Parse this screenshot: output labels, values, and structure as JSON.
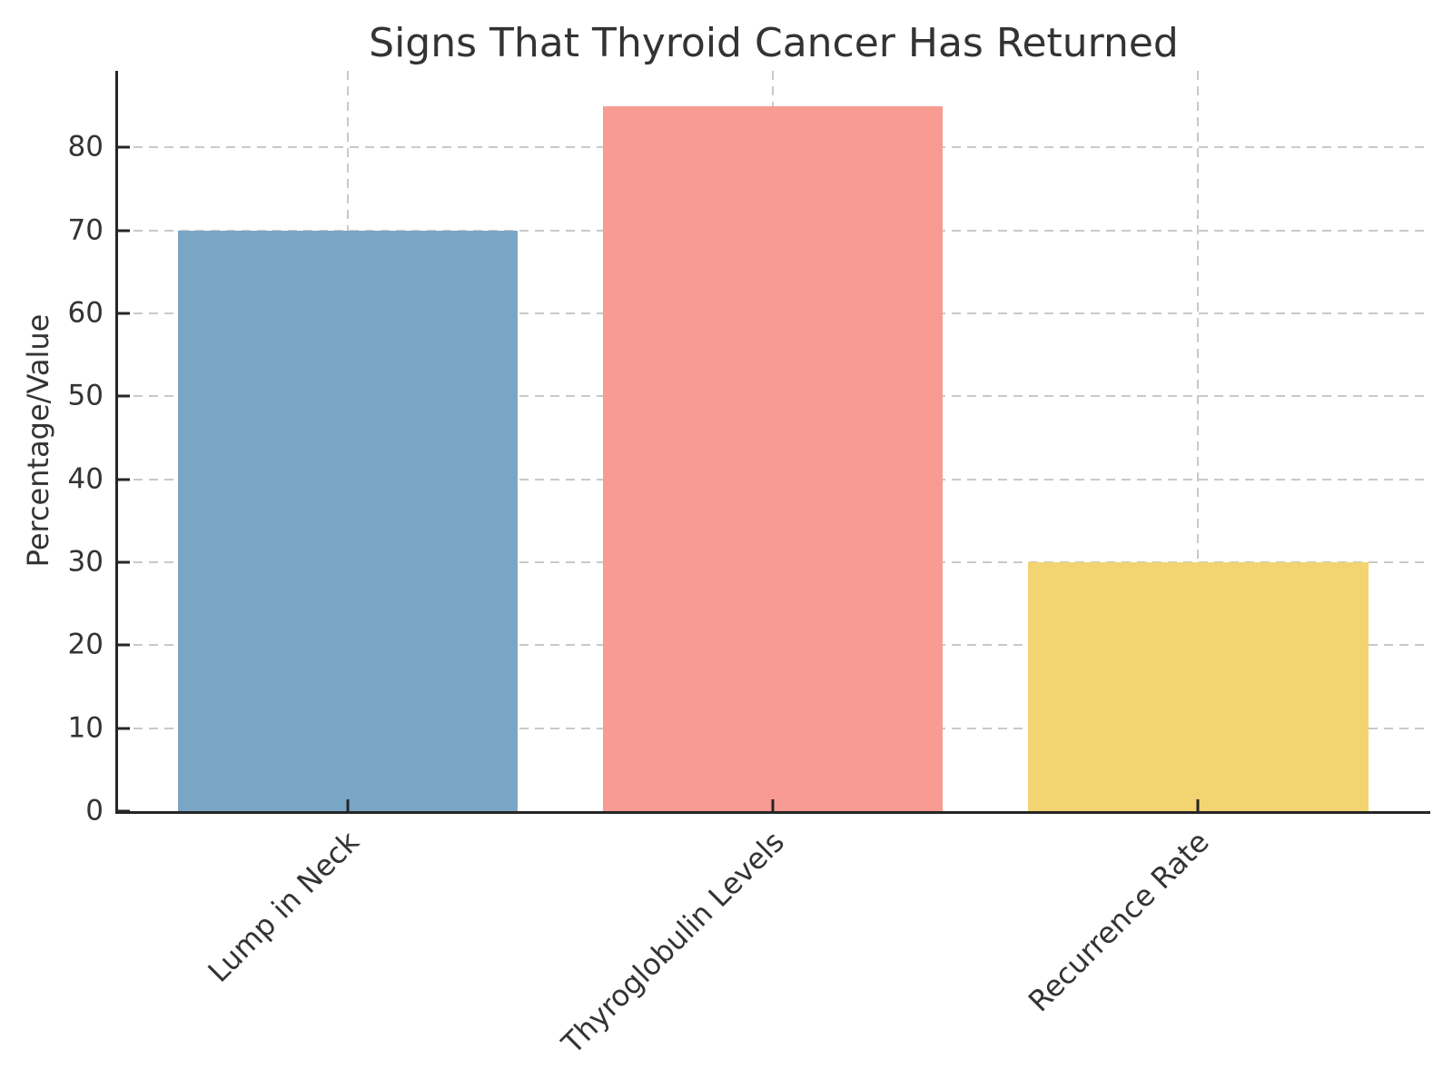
{
  "chart_data": {
    "type": "bar",
    "title": "Signs That Thyroid Cancer Has Returned",
    "xlabel": "",
    "ylabel": "Percentage/Value",
    "categories": [
      "Lump in Neck",
      "Thyroglobulin Levels",
      "Recurrence Rate"
    ],
    "values": [
      70,
      85,
      30
    ],
    "bar_colors": [
      "#7AA6C6",
      "#F89B92",
      "#F2D470"
    ],
    "yticks": [
      0,
      10,
      20,
      30,
      40,
      50,
      60,
      70,
      80
    ],
    "ylim": [
      0,
      89.25
    ],
    "grid": "dashed-both-axes",
    "legend": "none",
    "styles": {
      "spine_color": "#262626",
      "grid_color": "#c9c9c9",
      "text_color": "#333333",
      "background": "#ffffff"
    }
  }
}
